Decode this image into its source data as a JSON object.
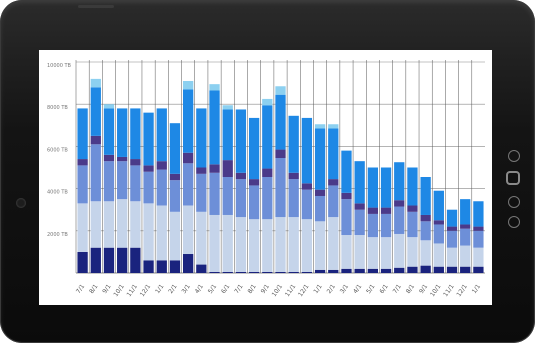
{
  "chart_data": {
    "type": "bar",
    "stacked": true,
    "title": "",
    "xlabel": "",
    "ylabel": "",
    "ylim": [
      0,
      10000
    ],
    "y_ticks": [
      "10000 TB",
      "8000 TB",
      "6000 TB",
      "4000 TB",
      "2000 TB"
    ],
    "y_tick_values": [
      10000,
      8000,
      6000,
      4000,
      2000
    ],
    "grid": true,
    "categories": [
      "7/1",
      "8/1",
      "9/1",
      "10/1",
      "11/1",
      "12/1",
      "1/1",
      "2/1",
      "3/1",
      "4/1",
      "5/1",
      "6/1",
      "7/1",
      "8/1",
      "9/1",
      "10/1",
      "11/1",
      "12/1",
      "1/1",
      "2/1",
      "3/1",
      "4/1",
      "5/1",
      "6/1",
      "7/1",
      "8/1",
      "9/1",
      "10/1",
      "11/1",
      "12/1",
      "1/1"
    ],
    "series": [
      {
        "color": "#1a237e",
        "values": [
          1000,
          1200,
          1200,
          1200,
          1200,
          600,
          600,
          600,
          900,
          400,
          50,
          50,
          50,
          50,
          50,
          50,
          50,
          50,
          150,
          150,
          200,
          200,
          200,
          200,
          250,
          300,
          350,
          300,
          300,
          300,
          300
        ]
      },
      {
        "color": "#c5d4ea",
        "values": [
          2300,
          2200,
          2200,
          2300,
          2200,
          2700,
          2600,
          2300,
          2300,
          2500,
          2700,
          2700,
          2600,
          2500,
          2500,
          2600,
          2600,
          2500,
          2300,
          2500,
          1600,
          1600,
          1500,
          1500,
          1600,
          1400,
          1200,
          1100,
          900,
          1000,
          900
        ]
      },
      {
        "color": "#6d8fd8",
        "values": [
          1800,
          2700,
          1900,
          1800,
          1700,
          1500,
          1700,
          1500,
          2000,
          1800,
          2000,
          1800,
          1800,
          1600,
          2000,
          2800,
          1800,
          1400,
          1200,
          1500,
          1700,
          1200,
          1100,
          1100,
          1300,
          1200,
          900,
          900,
          800,
          800,
          800
        ]
      },
      {
        "color": "#4a3a8a",
        "values": [
          300,
          400,
          300,
          200,
          300,
          300,
          400,
          300,
          500,
          300,
          400,
          800,
          300,
          300,
          400,
          400,
          300,
          300,
          300,
          300,
          300,
          300,
          300,
          300,
          300,
          300,
          300,
          200,
          200,
          200,
          200
        ]
      },
      {
        "color": "#1e88e5",
        "values": [
          2400,
          2300,
          2200,
          2300,
          2400,
          2500,
          2500,
          2400,
          3000,
          2800,
          3500,
          2400,
          3000,
          2900,
          3000,
          2600,
          2700,
          3100,
          2900,
          2400,
          2000,
          2000,
          1900,
          1900,
          1800,
          1800,
          1800,
          1400,
          800,
          1200,
          1200
        ]
      },
      {
        "color": "#8cd0f0",
        "values": [
          0,
          400,
          200,
          0,
          0,
          0,
          0,
          0,
          400,
          0,
          300,
          200,
          0,
          0,
          300,
          400,
          0,
          0,
          200,
          200,
          0,
          0,
          0,
          0,
          0,
          0,
          0,
          0,
          0,
          0,
          0
        ]
      }
    ]
  }
}
